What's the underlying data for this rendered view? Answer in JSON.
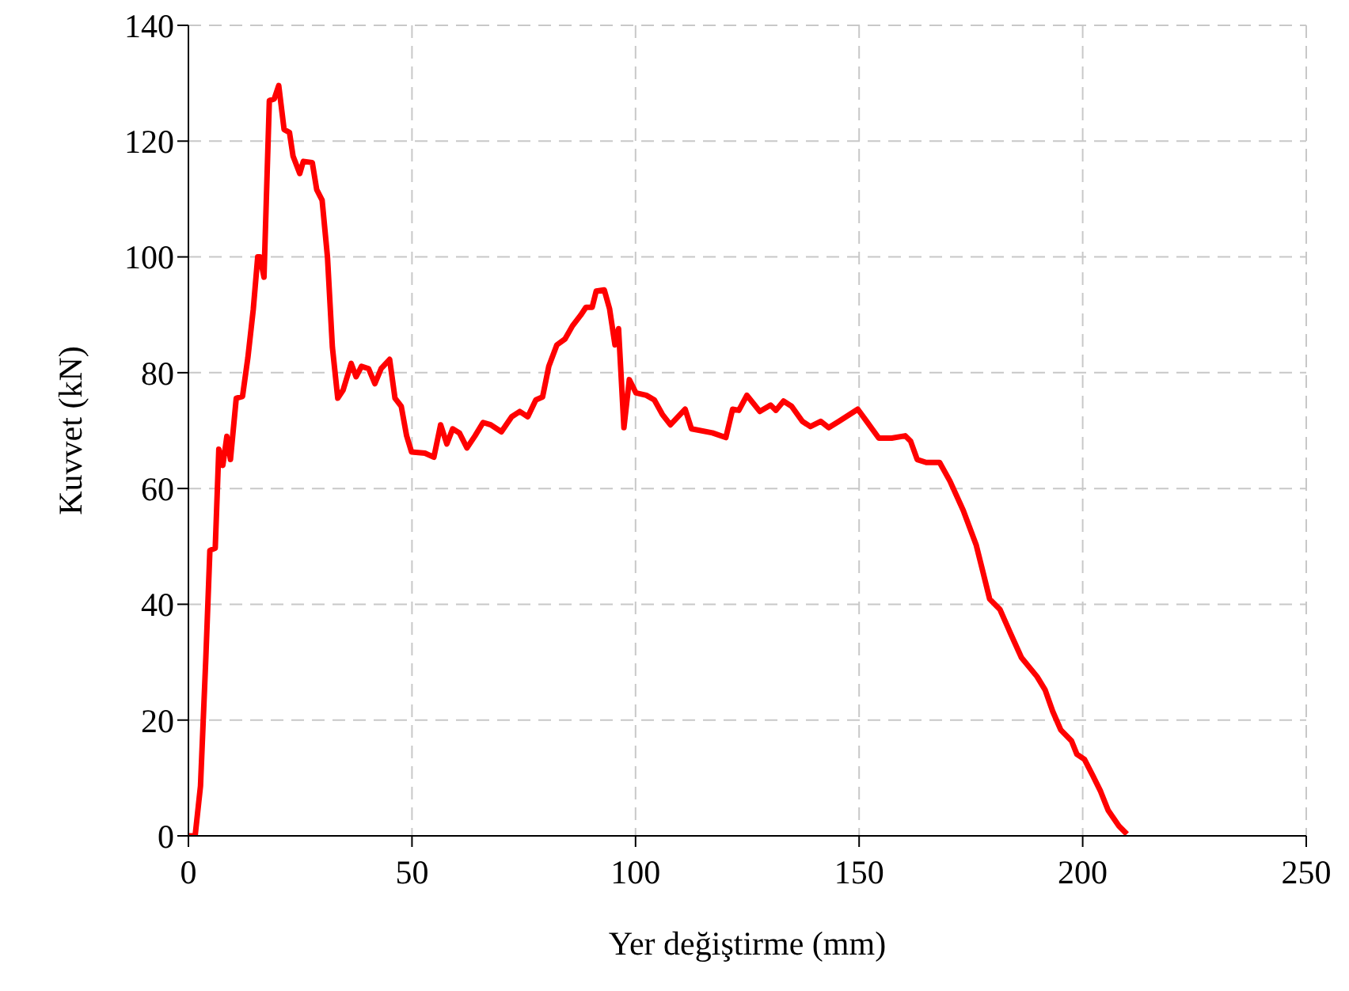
{
  "chart_data": {
    "type": "line",
    "xlabel": "Yer değiştirme (mm)",
    "ylabel": "Kuvvet (kN)",
    "xlim": [
      0,
      250
    ],
    "xticks": [
      0,
      50,
      100,
      150,
      200,
      250
    ],
    "ylim": [
      0,
      140
    ],
    "yticks": [
      0,
      20,
      40,
      60,
      80,
      100,
      120,
      140
    ],
    "grid": true,
    "legend": false,
    "marker": "none",
    "line_style": "solid",
    "series": [
      {
        "color": "#ff0000",
        "x": [
          0,
          1.5,
          2.7,
          3.9,
          4.8,
          6.0,
          6.8,
          7.7,
          8.6,
          9.4,
          10.7,
          12.1,
          13.3,
          14.5,
          15.5,
          16.0,
          16.9,
          18.1,
          19.2,
          20.2,
          21.4,
          22.6,
          23.4,
          24.9,
          25.7,
          27.7,
          28.7,
          29.9,
          31.1,
          32.2,
          33.4,
          34.6,
          36.4,
          37.5,
          38.7,
          40.3,
          41.7,
          43.1,
          45.0,
          46.2,
          47.6,
          48.8,
          49.9,
          52.9,
          54.9,
          56.4,
          57.8,
          59.1,
          60.6,
          62.3,
          64.1,
          65.9,
          67.6,
          70.0,
          72.3,
          74.1,
          75.9,
          77.7,
          79.2,
          80.6,
          82.4,
          84.2,
          85.9,
          87.7,
          88.9,
          90.3,
          91.2,
          93.0,
          94.2,
          95.4,
          96.2,
          97.4,
          98.6,
          100.1,
          102.4,
          104.2,
          106.0,
          107.8,
          111.1,
          112.5,
          117.2,
          120.2,
          121.7,
          123.1,
          124.9,
          127.8,
          130.2,
          131.4,
          133.1,
          134.9,
          137.3,
          139.1,
          141.4,
          143.2,
          145.5,
          149.7,
          151.4,
          154.4,
          157.3,
          160.3,
          161.5,
          163.0,
          165.0,
          168.0,
          170.3,
          173.3,
          176.2,
          177.4,
          179.2,
          181.5,
          183.9,
          186.3,
          189.8,
          191.6,
          193.3,
          195.1,
          197.5,
          198.7,
          200.4,
          202.2,
          204.0,
          205.7,
          208.1,
          209.9
        ],
        "values": [
          0,
          0,
          8.6,
          30.8,
          49.3,
          49.7,
          66.8,
          64,
          69,
          65,
          75.6,
          75.9,
          82.6,
          90.9,
          100,
          100,
          96.5,
          127,
          127.3,
          129.6,
          122,
          121.5,
          117.4,
          114.4,
          116.5,
          116.3,
          111.6,
          109.8,
          100,
          84.4,
          75.6,
          77,
          81.6,
          79.3,
          81.1,
          80.7,
          78.1,
          80.7,
          82.3,
          75.6,
          74.2,
          69.1,
          66.3,
          66.1,
          65.4,
          71,
          67.7,
          70.3,
          69.6,
          67,
          69.1,
          71.4,
          71,
          69.8,
          72.4,
          73.3,
          72.4,
          75.3,
          75.8,
          81.1,
          84.8,
          85.8,
          88.1,
          89.9,
          91.3,
          91.3,
          94.1,
          94.3,
          91,
          84.8,
          87.6,
          70.5,
          78.8,
          76.5,
          76.1,
          75.3,
          72.8,
          71,
          73.7,
          70.3,
          69.6,
          68.8,
          73.7,
          73.5,
          76.1,
          73.3,
          74.4,
          73.5,
          75.1,
          74.2,
          71.6,
          70.7,
          71.6,
          70.5,
          71.6,
          73.7,
          71.9,
          68.7,
          68.7,
          69.1,
          68.2,
          65,
          64.5,
          64.5,
          61.3,
          56.2,
          50.2,
          46.5,
          40.9,
          39.1,
          34.9,
          30.8,
          27.5,
          25.2,
          21.5,
          18.3,
          16.4,
          14.1,
          13.2,
          10.5,
          7.7,
          4.4,
          1.7,
          0.3
        ]
      }
    ]
  }
}
